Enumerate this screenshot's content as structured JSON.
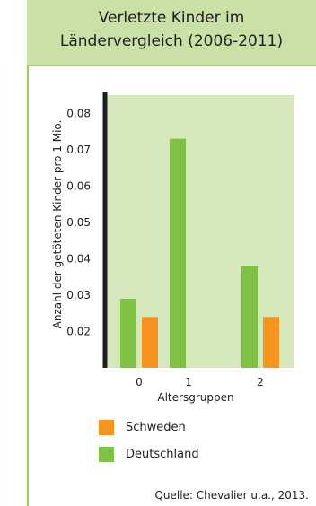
{
  "title_lines": [
    "Verletzte Kinder im",
    "Ländervergleich (2006-2011)"
  ],
  "source": "Quelle: Chevalier u.a., 2013.",
  "colors": {
    "deutschland": "#7dc242",
    "schweden": "#f7941d",
    "plot_bg": "#d5e8bc",
    "title_bg": "#c9e0a6"
  },
  "chart_data": {
    "type": "bar",
    "title": "Verletzte Kinder im Ländervergleich (2006-2011)",
    "xlabel": "Altersgruppen",
    "ylabel": "Anzahl der getöteten Kinder pro 1 Mio.",
    "categories": [
      "0",
      "1",
      "2"
    ],
    "ylim": [
      0.01,
      0.085
    ],
    "yticks": [
      "0,02",
      "0,03",
      "0,04",
      "0,05",
      "0,06",
      "0,07",
      "0,08"
    ],
    "ytick_values": [
      0.02,
      0.03,
      0.04,
      0.05,
      0.06,
      0.07,
      0.08
    ],
    "series": [
      {
        "name": "Deutschland",
        "values": [
          0.029,
          0.073,
          0.038
        ]
      },
      {
        "name": "Schweden",
        "values": [
          0.024,
          null,
          0.024
        ]
      }
    ],
    "legend": [
      "Schweden",
      "Deutschland"
    ],
    "legend_position": "bottom-left",
    "grid": false
  }
}
